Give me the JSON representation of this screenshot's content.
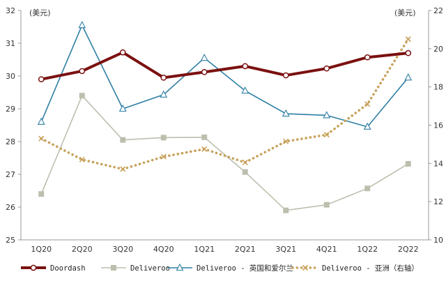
{
  "chart_data": {
    "type": "line",
    "title": "",
    "categories": [
      "1Q20",
      "2Q20",
      "3Q20",
      "4Q20",
      "1Q21",
      "2Q21",
      "3Q21",
      "4Q21",
      "1Q22",
      "2Q22"
    ],
    "left_axis": {
      "unit_label": "(美元)",
      "min": 25,
      "max": 32,
      "ticks": [
        "25",
        "26",
        "27",
        "28",
        "29",
        "30",
        "31",
        "32"
      ]
    },
    "right_axis": {
      "unit_label": "(美元)",
      "min": 10,
      "max": 22,
      "ticks": [
        "10",
        "12",
        "14",
        "16",
        "18",
        "20",
        "22"
      ]
    },
    "series": [
      {
        "name": "Doordash",
        "axis": "left",
        "color": "#7b1010",
        "style": "thick-line-circle",
        "values": [
          29.9,
          30.15,
          30.72,
          29.95,
          30.12,
          30.3,
          30.02,
          30.23,
          30.57,
          30.7
        ]
      },
      {
        "name": "Deliveroo",
        "axis": "left",
        "color": "#bdbfae",
        "style": "line-square",
        "values": [
          26.4,
          29.4,
          28.05,
          28.12,
          28.13,
          27.07,
          25.9,
          26.07,
          26.57,
          27.32
        ]
      },
      {
        "name": "Deliveroo - 英国和爱尔兰",
        "axis": "left",
        "color": "#2e7fa3",
        "style": "line-triangle",
        "values": [
          28.6,
          31.55,
          29.0,
          29.43,
          30.55,
          29.55,
          28.85,
          28.8,
          28.45,
          29.95
        ]
      },
      {
        "name": "Deliveroo - 亚洲（右轴）",
        "axis": "right",
        "color": "#c7a15a",
        "style": "dotted-x",
        "values": [
          15.3,
          14.2,
          13.7,
          14.35,
          14.75,
          14.05,
          15.15,
          15.5,
          17.1,
          20.5
        ]
      }
    ]
  }
}
